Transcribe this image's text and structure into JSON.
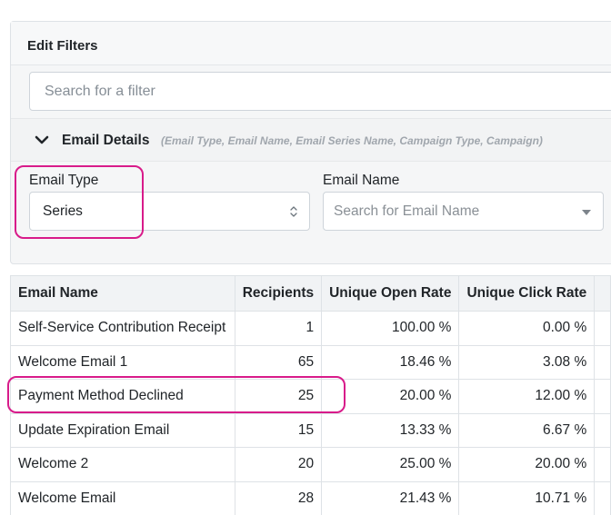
{
  "panel": {
    "title": "Edit Filters",
    "search_placeholder": "Search for a filter"
  },
  "section": {
    "title": "Email Details",
    "subtitle": "(Email Type, Email Name, Email Series Name, Campaign Type, Campaign)"
  },
  "filters": {
    "email_type": {
      "label": "Email Type",
      "value": "Series"
    },
    "email_name": {
      "label": "Email Name",
      "placeholder": "Search for Email Name"
    }
  },
  "table": {
    "columns": [
      "Email Name",
      "Recipients",
      "Unique Open Rate",
      "Unique Click Rate"
    ],
    "rows": [
      {
        "name": "Self-Service Contribution Receipt",
        "recipients": "1",
        "open_rate": "100.00 %",
        "click_rate": "0.00 %"
      },
      {
        "name": "Welcome Email 1",
        "recipients": "65",
        "open_rate": "18.46 %",
        "click_rate": "3.08 %"
      },
      {
        "name": "Payment Method Declined",
        "recipients": "25",
        "open_rate": "20.00 %",
        "click_rate": "12.00 %"
      },
      {
        "name": "Update Expiration Email",
        "recipients": "15",
        "open_rate": "13.33 %",
        "click_rate": "6.67 %"
      },
      {
        "name": "Welcome 2",
        "recipients": "20",
        "open_rate": "25.00 %",
        "click_rate": "20.00 %"
      },
      {
        "name": "Welcome Email",
        "recipients": "28",
        "open_rate": "21.43 %",
        "click_rate": "10.71 %"
      }
    ]
  },
  "icons": {
    "section_toggle": "chevron-down-icon",
    "type_select": "sort-updown-icon",
    "name_select": "caret-down-icon"
  },
  "colors": {
    "highlight": "#d81b8a"
  }
}
